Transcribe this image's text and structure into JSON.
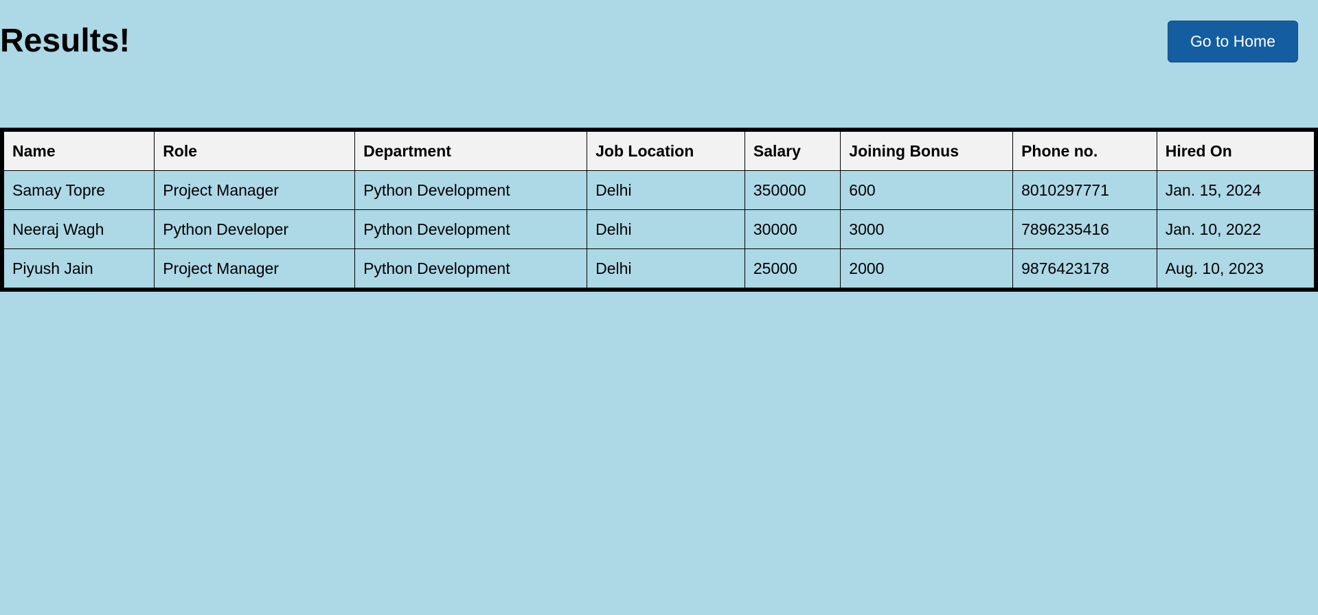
{
  "page": {
    "title": "Results!",
    "home_button_label": "Go to Home"
  },
  "colors": {
    "background": "#add8e6",
    "header_row": "#f2f2f2",
    "button": "#145da0"
  },
  "table": {
    "headers": [
      "Name",
      "Role",
      "Department",
      "Job Location",
      "Salary",
      "Joining Bonus",
      "Phone no.",
      "Hired On"
    ],
    "rows": [
      [
        "Samay Topre",
        "Project Manager",
        "Python Development",
        "Delhi",
        "350000",
        "600",
        "8010297771",
        "Jan. 15, 2024"
      ],
      [
        "Neeraj Wagh",
        "Python Developer",
        "Python Development",
        "Delhi",
        "30000",
        "3000",
        "7896235416",
        "Jan. 10, 2022"
      ],
      [
        "Piyush Jain",
        "Project Manager",
        "Python Development",
        "Delhi",
        "25000",
        "2000",
        "9876423178",
        "Aug. 10, 2023"
      ]
    ]
  }
}
